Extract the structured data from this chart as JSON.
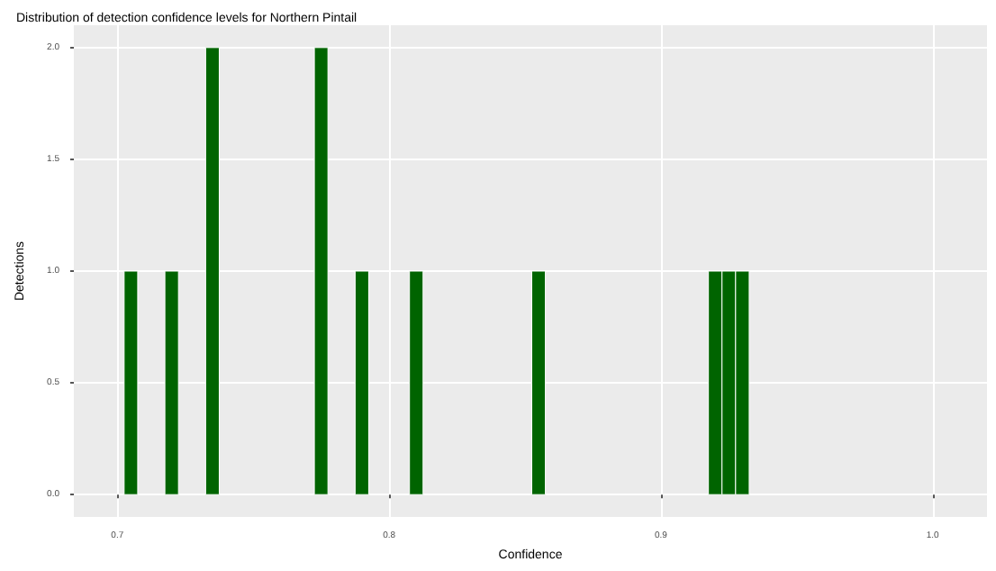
{
  "chart_data": {
    "type": "histogram",
    "title": "Distribution of detection confidence levels for Northern Pintail",
    "xlabel": "Confidence",
    "ylabel": "Detections",
    "color": "#006400",
    "bins": [
      0.7025,
      0.7075,
      0.7125,
      0.7175,
      0.7225,
      0.7275,
      0.7325,
      0.7375,
      0.7425,
      0.7475,
      0.7525,
      0.7575,
      0.7625,
      0.7675,
      0.7725,
      0.7775,
      0.7825,
      0.7875,
      0.7925,
      0.7975,
      0.8025,
      0.8075,
      0.8125,
      0.8175,
      0.8225,
      0.8275,
      0.8325,
      0.8375,
      0.8425,
      0.8475,
      0.8525,
      0.8575,
      0.8625,
      0.8675,
      0.8725,
      0.8775,
      0.8825,
      0.8875,
      0.8925,
      0.8975,
      0.9025,
      0.9075,
      0.9125,
      0.9175,
      0.9225,
      0.9275,
      0.9325
    ],
    "values": [
      1,
      0,
      0,
      1,
      0,
      0,
      2,
      0,
      0,
      0,
      0,
      0,
      0,
      0,
      2,
      0,
      0,
      1,
      0,
      0,
      0,
      1,
      0,
      0,
      0,
      0,
      0,
      0,
      0,
      0,
      1,
      0,
      0,
      0,
      0,
      0,
      0,
      0,
      0,
      0,
      0,
      0,
      0,
      1,
      1,
      1
    ],
    "xlim": [
      0.684,
      1.02
    ],
    "ylim": [
      -0.1,
      2.1
    ],
    "xticks": [
      0.7,
      0.8,
      0.9,
      {
        "value": 1,
        "label": "1.0"
      }
    ],
    "yticks": [
      {
        "value": 0,
        "label": "0.0"
      },
      0.5,
      {
        "value": 1,
        "label": "1.0"
      },
      1.5,
      {
        "value": 2,
        "label": "2.0"
      }
    ],
    "grid": true
  }
}
